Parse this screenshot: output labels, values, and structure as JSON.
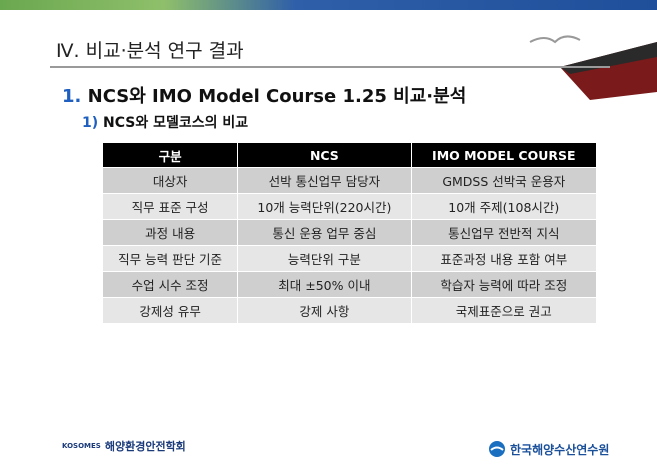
{
  "header": {
    "title": "Ⅳ. 비교·분석 연구 결과"
  },
  "heading": {
    "number": "1.",
    "text": "NCS와 IMO Model Course 1.25 비교·분석"
  },
  "subheading": {
    "number": "1)",
    "text": "NCS와 모델코스의 비교"
  },
  "table": {
    "headers": [
      "구분",
      "NCS",
      "IMO MODEL COURSE"
    ],
    "rows": [
      [
        "대상자",
        "선박 통신업무 담당자",
        "GMDSS 선박국 운용자"
      ],
      [
        "직무 표준 구성",
        "10개 능력단위(220시간)",
        "10개 주제(108시간)"
      ],
      [
        "과정 내용",
        "통신 운용 업무 중심",
        "통신업무 전반적 지식"
      ],
      [
        "직무 능력 판단 기준",
        "능력단위 구분",
        "표준과정 내용 포함 여부"
      ],
      [
        "수업 시수 조정",
        "최대 ±50% 이내",
        "학습자 능력에 따라 조정"
      ],
      [
        "강제성 유무",
        "강제 사항",
        "국제표준으로 권고"
      ]
    ]
  },
  "footer": {
    "left_abbrev": "KOSOMES",
    "left_name": "해양환경안전학회",
    "right_name": "한국해양수산연수원"
  }
}
